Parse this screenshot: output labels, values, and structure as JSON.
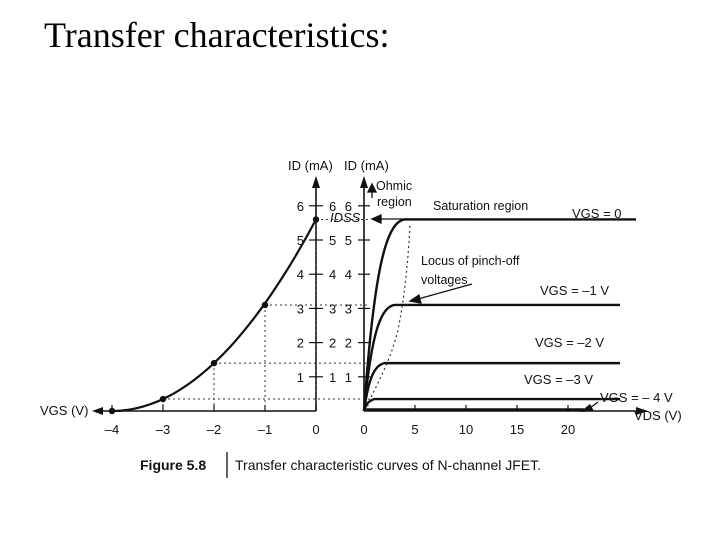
{
  "slide": {
    "title": "Transfer characteristics:"
  },
  "chart_data": [
    {
      "type": "line",
      "title": "",
      "xlabel": "VGS (V)",
      "ylabel": "ID (mA)",
      "xlim": [
        -4,
        0
      ],
      "ylim": [
        0,
        6
      ],
      "x_ticks": [
        "-4",
        "-3",
        "-2",
        "-1",
        "0"
      ],
      "y_ticks": [
        "1",
        "2",
        "3",
        "4",
        "5",
        "6"
      ],
      "annotations": {
        "idss": "IDSS"
      },
      "series": [
        {
          "x": [
            -4,
            -3,
            -2,
            -1,
            0
          ],
          "y": [
            0,
            0.35,
            1.4,
            3.1,
            5.6
          ]
        }
      ]
    },
    {
      "type": "line",
      "title": "",
      "xlabel": "VDS (V)",
      "ylabel": "ID (mA)",
      "xlim": [
        0,
        22
      ],
      "ylim": [
        0,
        6
      ],
      "x_ticks": [
        "0",
        "5",
        "10",
        "15",
        "20"
      ],
      "y_ticks": [
        "1",
        "2",
        "3",
        "4",
        "5",
        "6"
      ],
      "region_labels": {
        "ohmic_line1": "Ohmic",
        "ohmic_line2": "region",
        "saturation": "Saturation region",
        "pinch_off_line1": "Locus of pinch-off",
        "pinch_off_line2": "voltages"
      },
      "series": [
        {
          "name": "VGS = 0",
          "saturation_current": 5.6,
          "pinch_off_vds": 4.0
        },
        {
          "name": "VGS = –1 V",
          "saturation_current": 3.1,
          "pinch_off_vds": 3.0
        },
        {
          "name": "VGS = –2 V",
          "saturation_current": 1.4,
          "pinch_off_vds": 2.0
        },
        {
          "name": "VGS = –3 V",
          "saturation_current": 0.35,
          "pinch_off_vds": 1.0
        },
        {
          "name": "VGS = – 4 V",
          "saturation_current": 0.0,
          "pinch_off_vds": 0.0
        }
      ]
    }
  ],
  "caption": {
    "figure_label": "Figure 5.8",
    "text": "Transfer characteristic curves of N-channel JFET."
  }
}
